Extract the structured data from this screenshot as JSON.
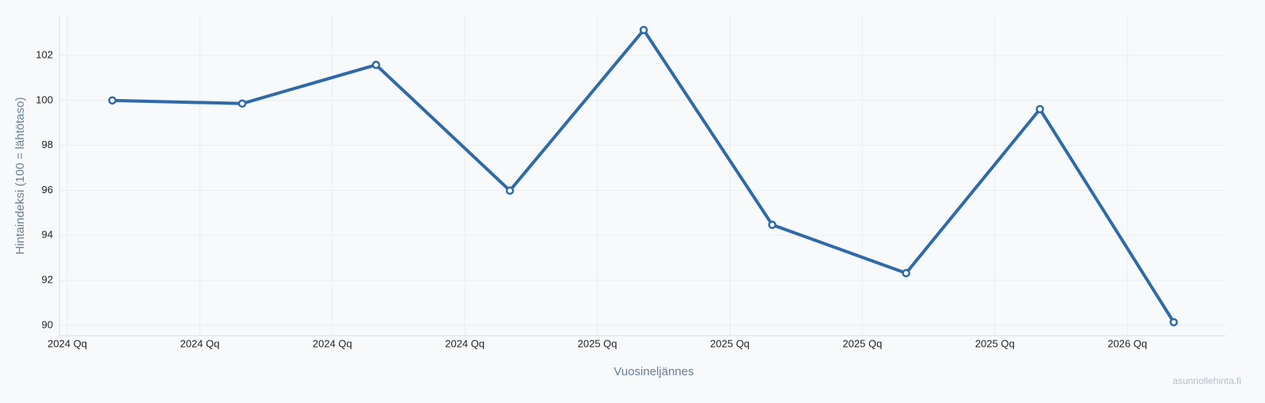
{
  "chart_data": {
    "type": "line",
    "x_label": "Vuosineljännes",
    "y_label": "Hintaindeksi (100 = lähtötaso)",
    "watermark": "asunnollehinta.fi",
    "x": [
      0.34,
      1.32,
      2.33,
      3.34,
      4.35,
      5.32,
      6.33,
      7.34,
      8.35
    ],
    "series": [
      {
        "color": "#2f6aa8",
        "values": [
          100.0,
          99.86,
          101.58,
          95.99,
          103.13,
          94.47,
          92.32,
          99.61,
          90.14
        ]
      }
    ],
    "xlim": [
      -0.06,
      8.74
    ],
    "xticks": [
      {
        "value": 0,
        "label": "2024 Qq"
      },
      {
        "value": 1,
        "label": "2024 Qq"
      },
      {
        "value": 2,
        "label": "2024 Qq"
      },
      {
        "value": 3,
        "label": "2024 Qq"
      },
      {
        "value": 4,
        "label": "2025 Qq"
      },
      {
        "value": 5,
        "label": "2025 Qq"
      },
      {
        "value": 6,
        "label": "2025 Qq"
      },
      {
        "value": 7,
        "label": "2025 Qq"
      },
      {
        "value": 8,
        "label": "2026 Qq"
      }
    ],
    "ylim": [
      89.54,
      103.76
    ],
    "yticks": [
      90,
      92,
      94,
      96,
      98,
      100,
      102
    ],
    "grid": true
  }
}
